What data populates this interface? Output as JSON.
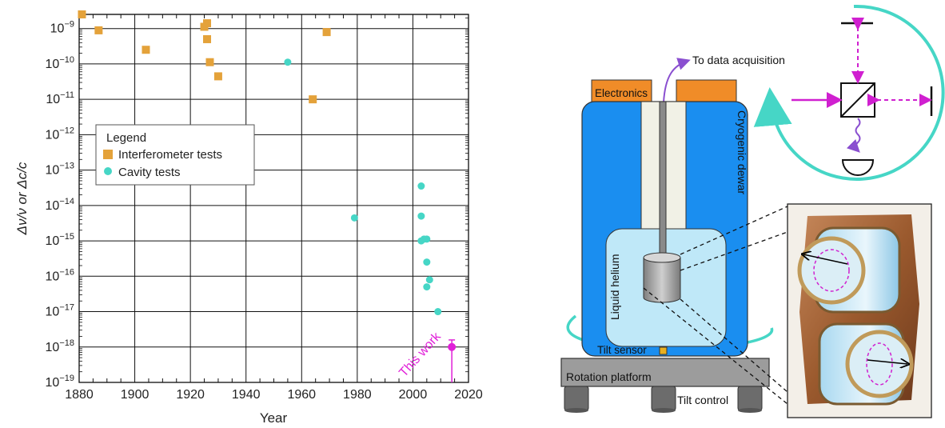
{
  "chart_data": {
    "type": "scatter",
    "xlabel": "Year",
    "ylabel": "Δν/ν or Δc/c",
    "xlim": [
      1880,
      2020
    ],
    "ylim_log10": [
      -19,
      -8.6
    ],
    "y_scale": "log",
    "x_ticks": [
      1880,
      1900,
      1920,
      1940,
      1960,
      1980,
      2000,
      2020
    ],
    "y_tick_exponents": [
      -9,
      -10,
      -11,
      -12,
      -13,
      -14,
      -15,
      -16,
      -17,
      -18,
      -19
    ],
    "grid": true,
    "legend": {
      "title": "Legend",
      "position": "center-left",
      "entries": [
        "Interferometer tests",
        "Cavity tests"
      ]
    },
    "series": [
      {
        "name": "Interferometer tests",
        "marker": "square",
        "color": "#e4a23a",
        "points": [
          [
            1881,
            -8.6
          ],
          [
            1887,
            -9.05
          ],
          [
            1904,
            -9.6
          ],
          [
            1925,
            -8.95
          ],
          [
            1926,
            -8.85
          ],
          [
            1926,
            -9.3
          ],
          [
            1927,
            -9.95
          ],
          [
            1930,
            -10.35
          ],
          [
            1964,
            -11.0
          ],
          [
            1969,
            -9.1
          ]
        ]
      },
      {
        "name": "Cavity tests",
        "marker": "circle",
        "color": "#46d6c6",
        "points": [
          [
            1955,
            -9.95
          ],
          [
            1979,
            -14.35
          ],
          [
            2003,
            -13.45
          ],
          [
            2003,
            -14.3
          ],
          [
            2003,
            -15.0
          ],
          [
            2004,
            -14.95
          ],
          [
            2005,
            -14.95
          ],
          [
            2005,
            -15.6
          ],
          [
            2006,
            -16.1
          ],
          [
            2005,
            -16.3
          ],
          [
            2009,
            -17.0
          ]
        ]
      }
    ],
    "highlight": {
      "label": "This work",
      "color": "#e020d8",
      "point": [
        2014,
        -18.0
      ],
      "error_log10": [
        -19.0,
        -17.8
      ]
    }
  },
  "diagram": {
    "labels": {
      "data_acquisition": "To data acquisition",
      "electronics": "Electronics",
      "dewar": "Cryogenic dewar",
      "helium": "Liquid helium",
      "tilt_sensor": "Tilt sensor",
      "platform": "Rotation platform",
      "tilt_control": "Tilt control"
    },
    "colors": {
      "dewar_blue": "#1a8ef0",
      "helium_light": "#bfe8f8",
      "electronics_orange": "#f08c28",
      "rotation_teal": "#46d6c6",
      "laser_magenta": "#d020d0",
      "copper": "#a8683a"
    }
  }
}
